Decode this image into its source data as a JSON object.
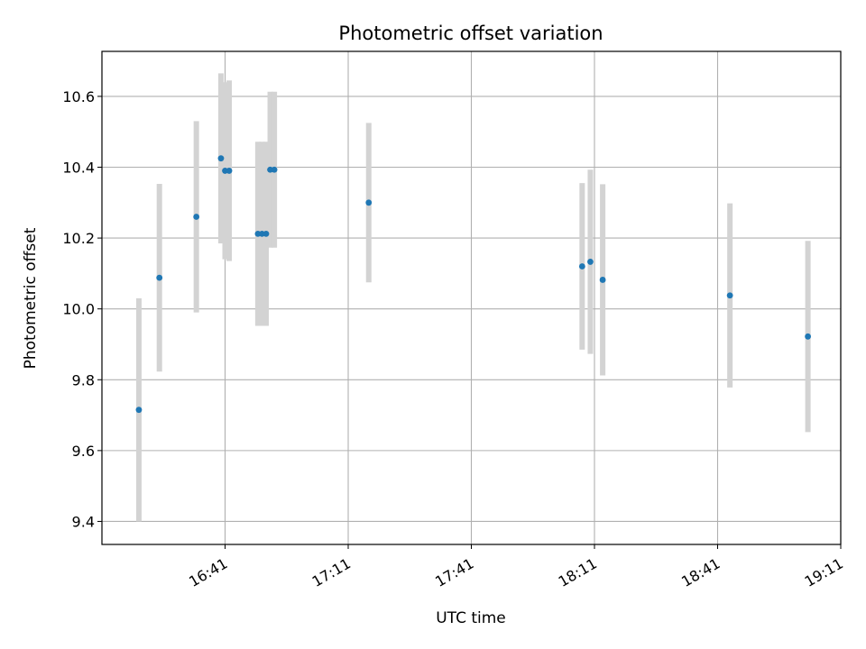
{
  "chart_data": {
    "type": "scatter",
    "title": "Photometric offset variation",
    "xlabel": "UTC time",
    "ylabel": "Photometric offset",
    "x_tick_labels": [
      "16:41",
      "17:11",
      "17:41",
      "18:11",
      "18:41",
      "19:11"
    ],
    "x_tick_minutes": [
      1001,
      1031,
      1061,
      1091,
      1121,
      1151
    ],
    "xlim_minutes": [
      971,
      1151
    ],
    "y_ticks": [
      9.4,
      9.6,
      9.8,
      10.0,
      10.2,
      10.4,
      10.6
    ],
    "y_tick_labels": [
      "9.4",
      "9.6",
      "9.8",
      "10.0",
      "10.2",
      "10.4",
      "10.6"
    ],
    "ylim": [
      9.335,
      10.727
    ],
    "grid": true,
    "marker_color": "#1f77b4",
    "errorbar_color": "#d3d3d3",
    "points": [
      {
        "time": "16:20",
        "y": 9.715,
        "err": 0.315
      },
      {
        "time": "16:25",
        "y": 10.088,
        "err": 0.265
      },
      {
        "time": "16:34",
        "y": 10.26,
        "err": 0.27
      },
      {
        "time": "16:40",
        "y": 10.425,
        "err": 0.24
      },
      {
        "time": "16:41",
        "y": 10.39,
        "err": 0.25
      },
      {
        "time": "16:42",
        "y": 10.39,
        "err": 0.255
      },
      {
        "time": "16:49",
        "y": 10.212,
        "err": 0.26
      },
      {
        "time": "16:50",
        "y": 10.212,
        "err": 0.26
      },
      {
        "time": "16:51",
        "y": 10.212,
        "err": 0.26
      },
      {
        "time": "16:52",
        "y": 10.393,
        "err": 0.22
      },
      {
        "time": "16:53",
        "y": 10.393,
        "err": 0.22
      },
      {
        "time": "17:16",
        "y": 10.3,
        "err": 0.225
      },
      {
        "time": "18:08",
        "y": 10.12,
        "err": 0.235
      },
      {
        "time": "18:10",
        "y": 10.133,
        "err": 0.26
      },
      {
        "time": "18:13",
        "y": 10.082,
        "err": 0.27
      },
      {
        "time": "18:44",
        "y": 10.038,
        "err": 0.26
      },
      {
        "time": "19:03",
        "y": 9.922,
        "err": 0.27
      }
    ]
  }
}
